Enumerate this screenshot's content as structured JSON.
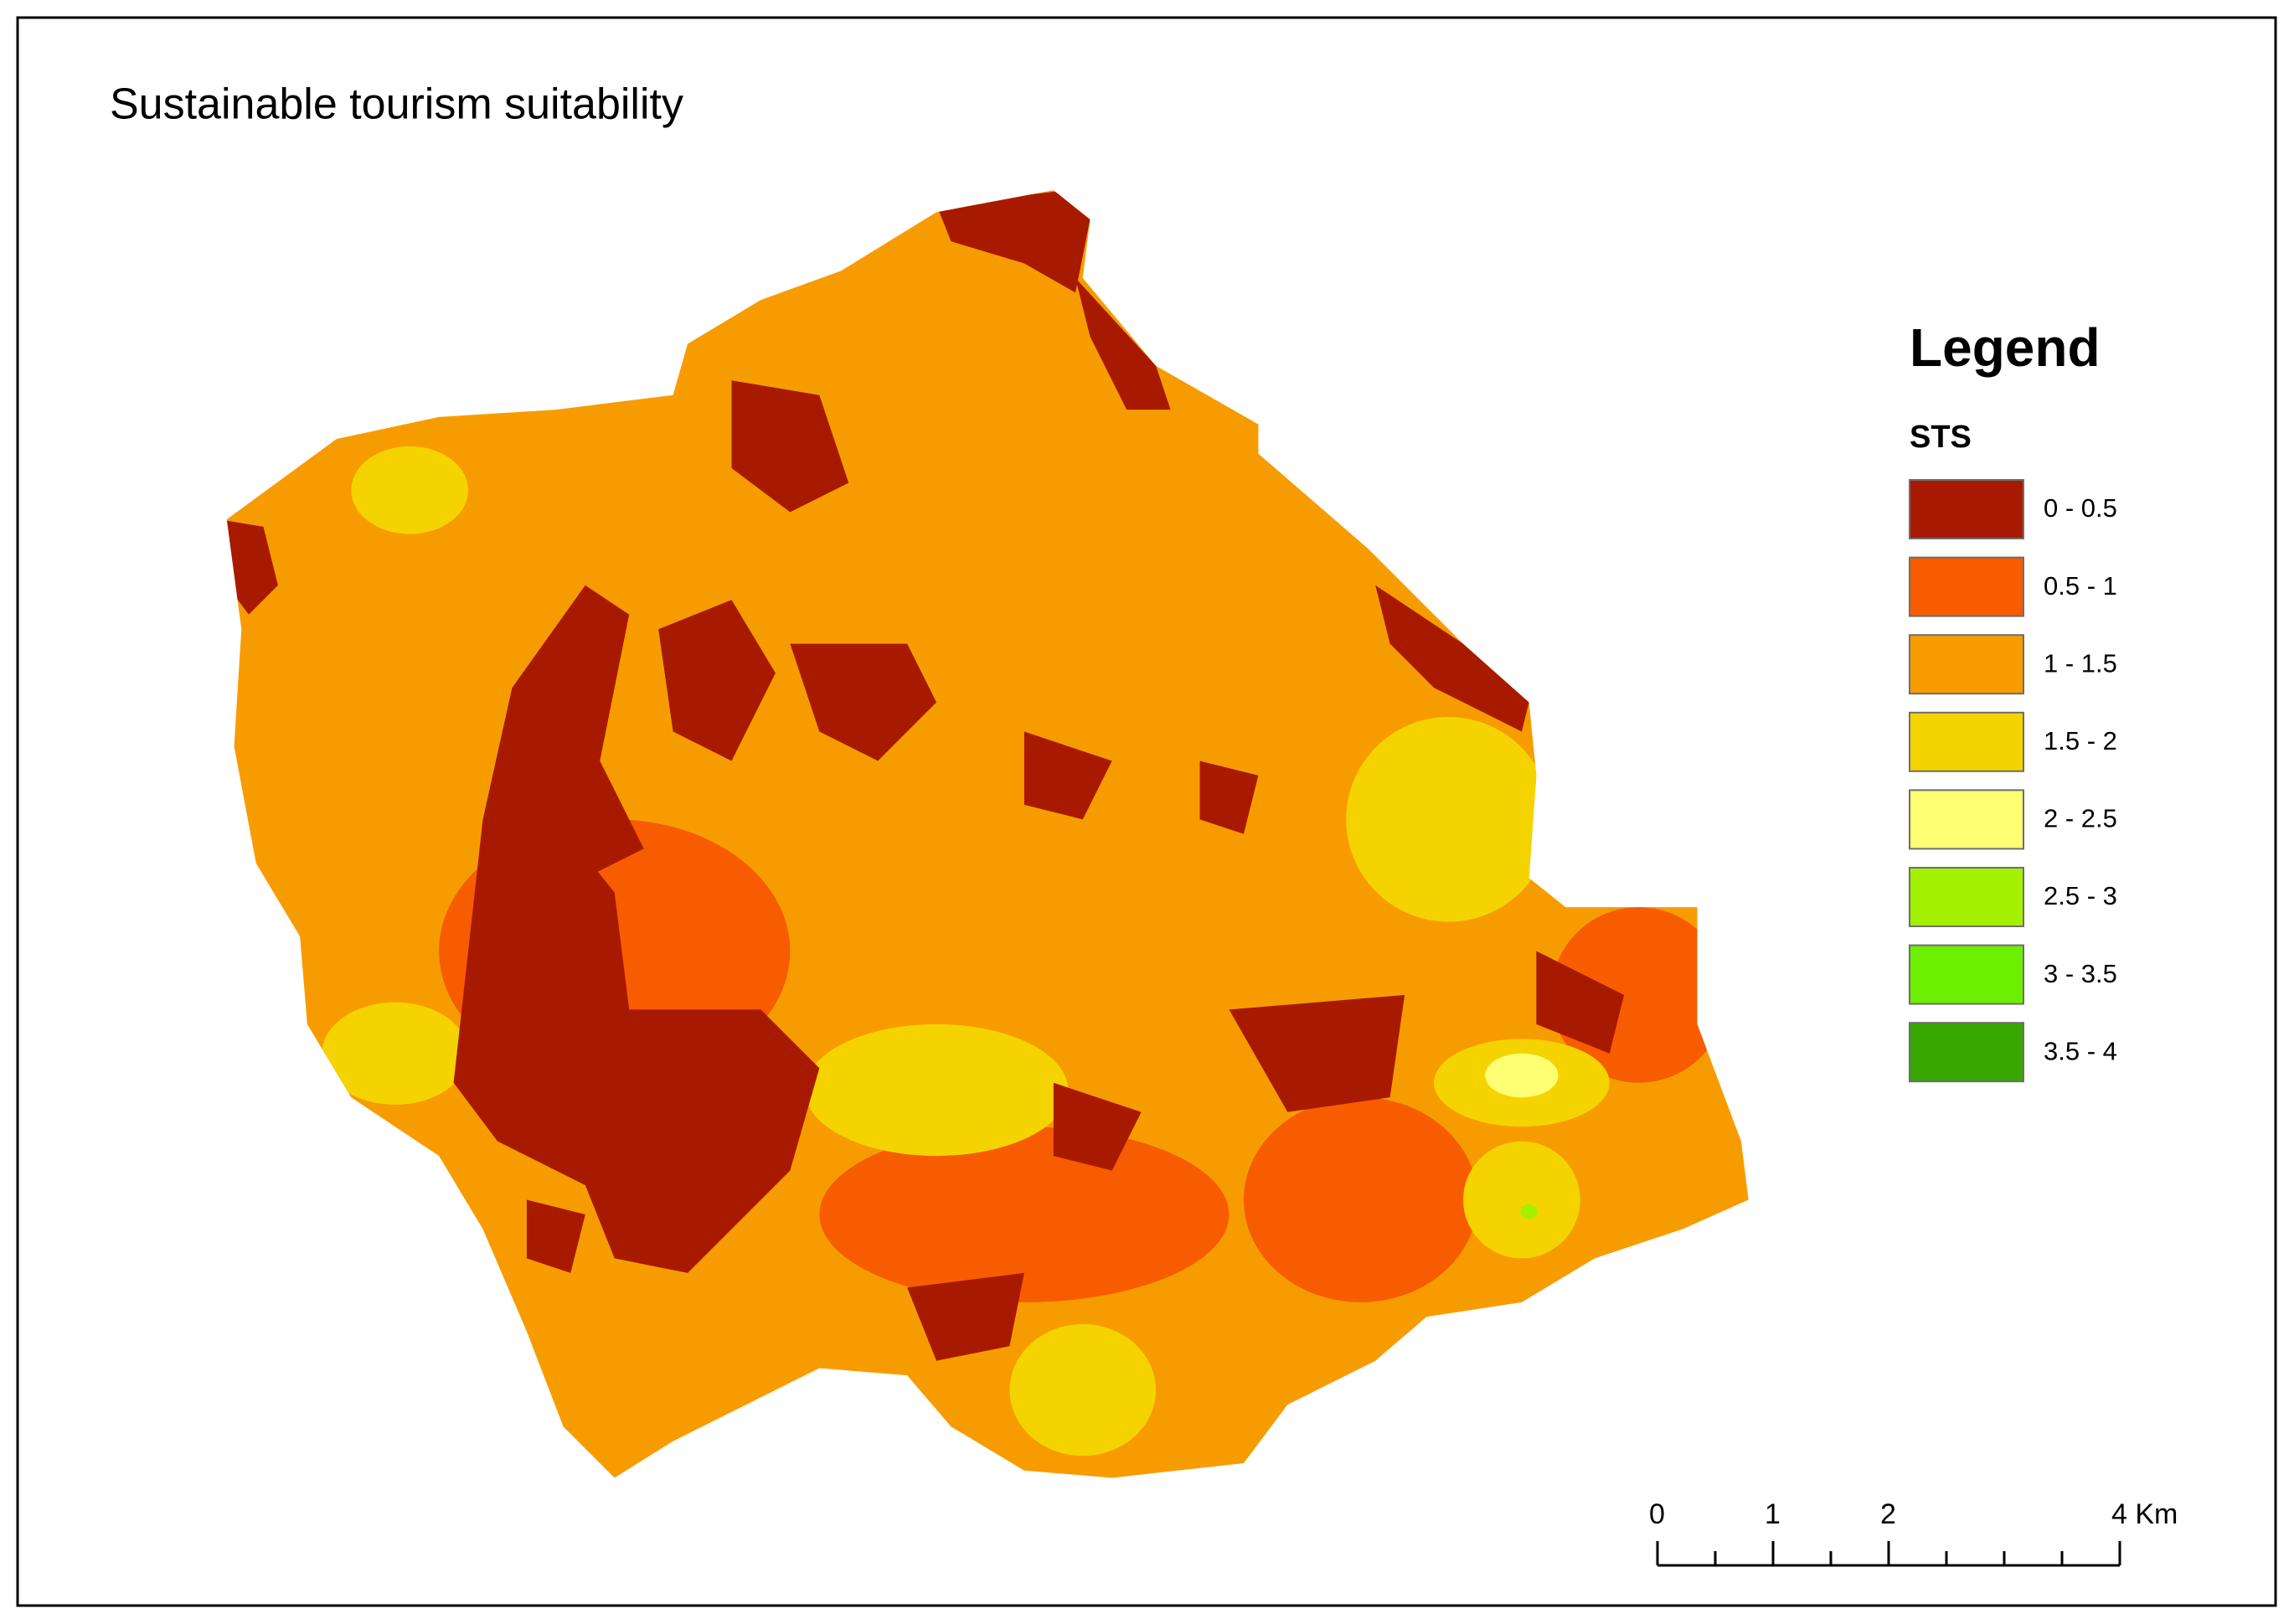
{
  "title": "Sustainable tourism suitability",
  "legend": {
    "title": "Legend",
    "field": "STS",
    "items": [
      {
        "label": "0 - 0.5",
        "color": "#a81a00"
      },
      {
        "label": "0.5 - 1",
        "color": "#f75c00"
      },
      {
        "label": "1 - 1.5",
        "color": "#f79c00"
      },
      {
        "label": "1.5 - 2",
        "color": "#f5d300"
      },
      {
        "label": "2 - 2.5",
        "color": "#ffff73"
      },
      {
        "label": "2.5 - 3",
        "color": "#a3f000"
      },
      {
        "label": "3 - 3.5",
        "color": "#6af000"
      },
      {
        "label": "3.5 - 4",
        "color": "#38a800"
      }
    ]
  },
  "scale_bar": {
    "labels": [
      "0",
      "1",
      "2",
      "4 Km"
    ]
  }
}
